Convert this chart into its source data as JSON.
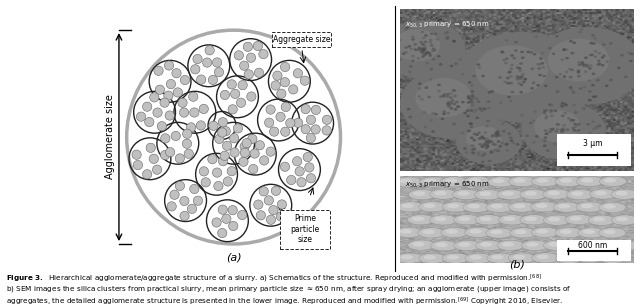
{
  "label_a": "(a)",
  "label_b": "(b)",
  "agg_label": "Aggregate size",
  "agglom_label": "Agglomerate size",
  "prime_label": "Prime\nparticle\nsize",
  "top_label_prefix": "X",
  "top_label_sub": "50,3 primary",
  "top_label_suffix": " = 650 nm",
  "scale_top": "3 μm",
  "scale_bottom": "600 nm",
  "bg_color": "#ffffff",
  "small_sphere_color": "#c0c0c0",
  "small_sphere_edge": "#666666",
  "large_circle_color": "#222222",
  "outer_circle_color": "#aaaaaa",
  "sem_top_bg": "#606060",
  "sem_bottom_bg": "#b0b0b0",
  "agg_circles": [
    [
      -0.82,
      0.72,
      0.27
    ],
    [
      -0.32,
      0.92,
      0.27
    ],
    [
      0.22,
      1.0,
      0.27
    ],
    [
      0.72,
      0.72,
      0.27
    ],
    [
      1.02,
      0.18,
      0.27
    ],
    [
      0.85,
      -0.42,
      0.27
    ],
    [
      0.48,
      -0.88,
      0.27
    ],
    [
      -0.08,
      -1.08,
      0.27
    ],
    [
      -0.62,
      -0.82,
      0.27
    ],
    [
      -1.08,
      -0.28,
      0.27
    ],
    [
      -1.02,
      0.32,
      0.27
    ],
    [
      -0.5,
      0.32,
      0.27
    ],
    [
      0.05,
      0.52,
      0.27
    ],
    [
      0.58,
      0.22,
      0.27
    ],
    [
      0.28,
      -0.22,
      0.27
    ],
    [
      -0.22,
      -0.48,
      0.27
    ],
    [
      -0.72,
      -0.08,
      0.27
    ],
    [
      0.0,
      -0.08,
      0.27
    ],
    [
      -0.15,
      0.15,
      0.18
    ]
  ]
}
